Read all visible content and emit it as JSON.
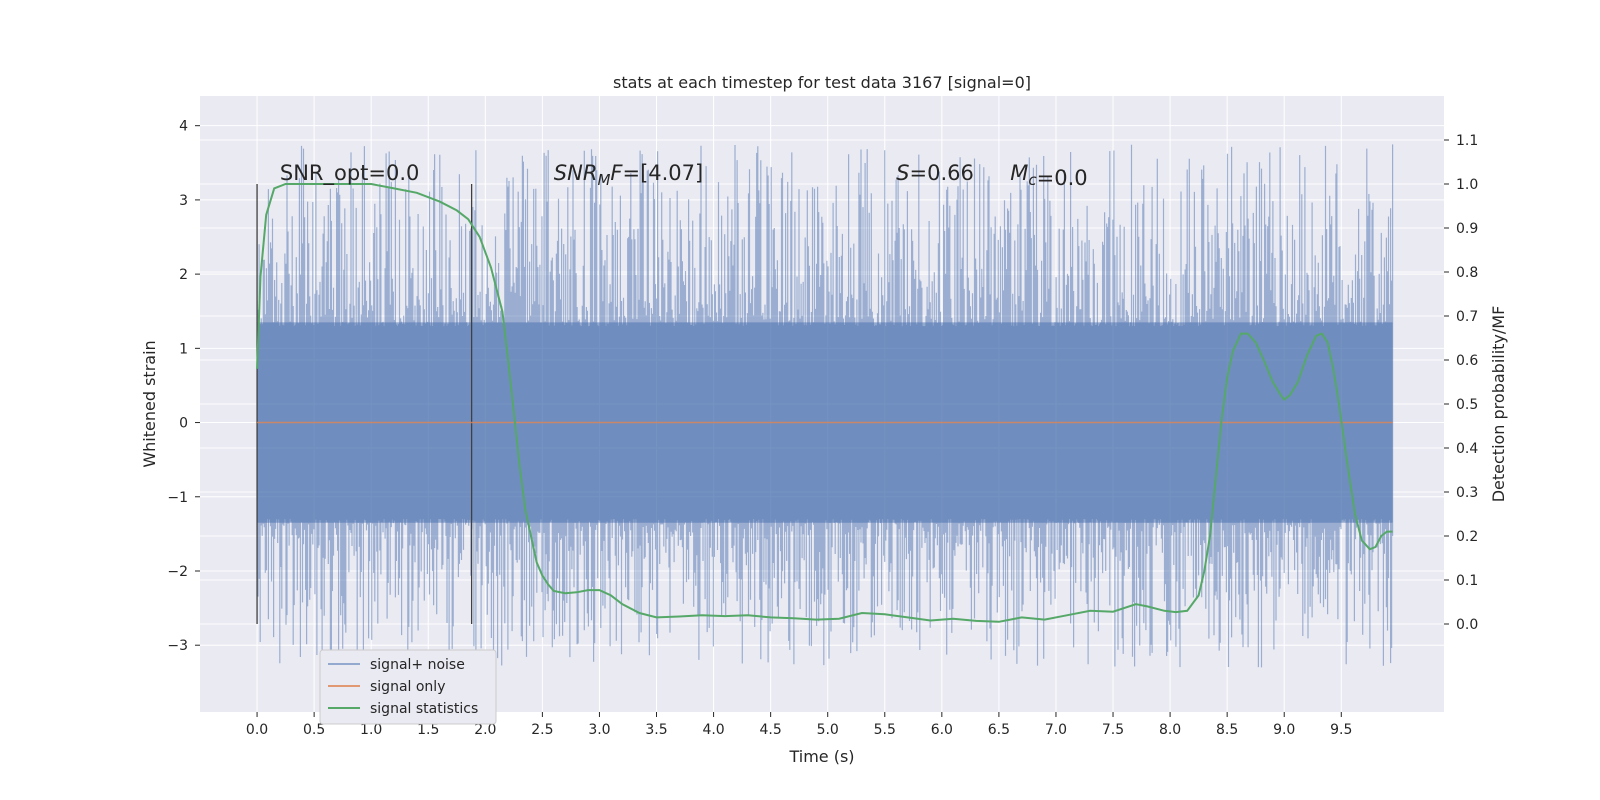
{
  "chart_data": {
    "type": "line",
    "title": "stats at each timestep for test data 3167 [signal=0]",
    "xlabel": "Time (s)",
    "ylabel_left": "Whitened strain",
    "ylabel_right": "Detection probability/MF",
    "xlim": [
      -0.5,
      10.4
    ],
    "ylim_left": [
      -3.9,
      4.4
    ],
    "ylim_right": [
      -0.2,
      1.2
    ],
    "x_ticks": [
      "0.0",
      "0.5",
      "1.0",
      "1.5",
      "2.0",
      "2.5",
      "3.0",
      "3.5",
      "4.0",
      "4.5",
      "5.0",
      "5.5",
      "6.0",
      "6.5",
      "7.0",
      "7.5",
      "8.0",
      "8.5",
      "9.0",
      "9.5"
    ],
    "x_tick_values": [
      0,
      0.5,
      1,
      1.5,
      2,
      2.5,
      3,
      3.5,
      4,
      4.5,
      5,
      5.5,
      6,
      6.5,
      7,
      7.5,
      8,
      8.5,
      9,
      9.5
    ],
    "y_ticks_left": [
      "4",
      "3",
      "2",
      "1",
      "0",
      "−1",
      "−2",
      "−3"
    ],
    "y_tick_values_left": [
      4,
      3,
      2,
      1,
      0,
      -1,
      -2,
      -3
    ],
    "y_ticks_right": [
      "1.1",
      "1.0",
      "0.9",
      "0.8",
      "0.7",
      "0.6",
      "0.5",
      "0.4",
      "0.3",
      "0.2",
      "0.1",
      "0.0"
    ],
    "y_tick_values_right": [
      1.1,
      1.0,
      0.9,
      0.8,
      0.7,
      0.6,
      0.5,
      0.4,
      0.3,
      0.2,
      0.1,
      0.0
    ],
    "grid": true,
    "legend_position": "bottom-left",
    "series": [
      {
        "name": "signal+ noise",
        "color": "#4c72b0",
        "axis": "left",
        "type": "noise_band",
        "x_range": [
          0,
          9.95
        ],
        "typical_range": [
          -2.2,
          2.2
        ],
        "peak_max": 4.05,
        "peak_min": -3.6
      },
      {
        "name": "signal only",
        "color": "#dd8452",
        "axis": "left",
        "type": "line",
        "x": [
          0,
          9.95
        ],
        "values": [
          0,
          0
        ]
      },
      {
        "name": "signal statistics",
        "color": "#55a868",
        "axis": "right",
        "type": "line",
        "x": [
          0,
          0.03,
          0.08,
          0.15,
          0.25,
          0.5,
          0.8,
          1.0,
          1.2,
          1.4,
          1.6,
          1.75,
          1.85,
          1.95,
          2.05,
          2.15,
          2.2,
          2.25,
          2.3,
          2.35,
          2.4,
          2.45,
          2.5,
          2.55,
          2.6,
          2.7,
          2.8,
          2.9,
          3.0,
          3.1,
          3.2,
          3.35,
          3.5,
          3.7,
          3.9,
          4.1,
          4.3,
          4.5,
          4.7,
          4.9,
          5.1,
          5.3,
          5.5,
          5.7,
          5.9,
          6.1,
          6.3,
          6.5,
          6.7,
          6.9,
          7.1,
          7.3,
          7.5,
          7.7,
          7.8,
          7.95,
          8.05,
          8.15,
          8.25,
          8.3,
          8.35,
          8.4,
          8.45,
          8.5,
          8.55,
          8.62,
          8.68,
          8.75,
          8.82,
          8.9,
          8.97,
          9.0,
          9.05,
          9.12,
          9.2,
          9.28,
          9.33,
          9.38,
          9.43,
          9.48,
          9.55,
          9.62,
          9.68,
          9.75,
          9.8,
          9.85,
          9.9,
          9.95
        ],
        "values": [
          0.58,
          0.79,
          0.93,
          0.99,
          1.0,
          1.0,
          1.0,
          1.0,
          0.99,
          0.98,
          0.96,
          0.94,
          0.92,
          0.88,
          0.81,
          0.71,
          0.6,
          0.48,
          0.36,
          0.26,
          0.2,
          0.14,
          0.11,
          0.09,
          0.075,
          0.07,
          0.072,
          0.077,
          0.077,
          0.065,
          0.045,
          0.025,
          0.015,
          0.017,
          0.02,
          0.018,
          0.02,
          0.015,
          0.013,
          0.01,
          0.012,
          0.025,
          0.022,
          0.015,
          0.008,
          0.012,
          0.007,
          0.005,
          0.015,
          0.01,
          0.02,
          0.03,
          0.028,
          0.045,
          0.04,
          0.03,
          0.027,
          0.03,
          0.065,
          0.12,
          0.2,
          0.33,
          0.46,
          0.56,
          0.62,
          0.66,
          0.66,
          0.64,
          0.6,
          0.55,
          0.52,
          0.51,
          0.52,
          0.55,
          0.61,
          0.655,
          0.66,
          0.64,
          0.58,
          0.5,
          0.37,
          0.25,
          0.19,
          0.17,
          0.175,
          0.2,
          0.21,
          0.21
        ]
      }
    ],
    "markers_x": [
      0,
      1.88
    ],
    "annotations": [
      {
        "text": "SNR_opt=0.0",
        "x": 0.2,
        "y_right": 1.0
      },
      {
        "text": "=[4.07]",
        "math_main": "SNR",
        "math_sub": "M",
        "math_tail": "F",
        "x": 2.6,
        "y_right": 1.0
      },
      {
        "text": "=0.66",
        "math_main": "S",
        "x": 5.6,
        "y_right": 1.0
      },
      {
        "text": "=0.0",
        "math_main": "M",
        "math_sub": "c",
        "x": 6.6,
        "y_right": 1.0
      }
    ]
  }
}
